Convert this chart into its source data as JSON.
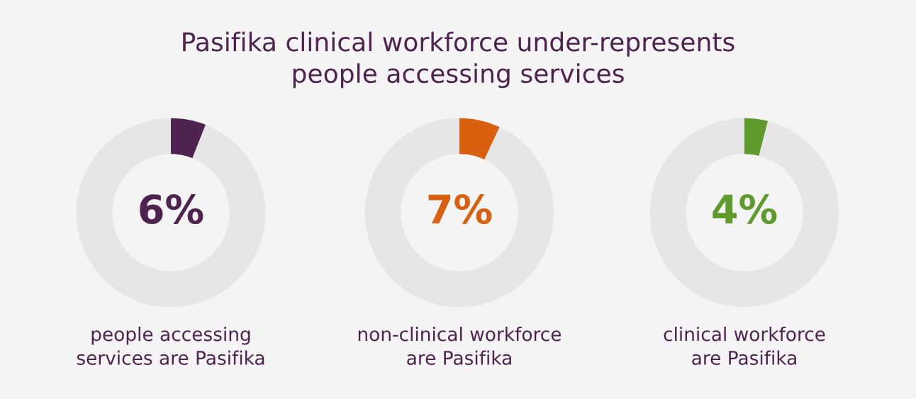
{
  "chart_data": [
    {
      "type": "donut",
      "title": "Pasifika clinical workforce under-represents\npeople accessing services",
      "categories": [
        null,
        null
      ],
      "values": [
        6,
        94
      ],
      "colors": [
        "#4f2350",
        "#e6e6e6"
      ],
      "value_labels": [
        "6%",
        null
      ],
      "xlabel": "people accessing\nservices are Pasifika"
    },
    {
      "type": "donut",
      "categories": [
        null,
        null
      ],
      "values": [
        7,
        93
      ],
      "colors": [
        "#d9600f",
        "#e6e6e6"
      ],
      "value_labels": [
        "7%",
        null
      ],
      "xlabel": "non-clinical workforce\nare Pasifika"
    },
    {
      "type": "donut",
      "categories": [
        null,
        null
      ],
      "values": [
        4,
        96
      ],
      "colors": [
        "#5e9a2c",
        "#e6e6e6"
      ],
      "value_labels": [
        "4%",
        null
      ],
      "xlabel": "clinical workforce\nare Pasifika"
    }
  ]
}
